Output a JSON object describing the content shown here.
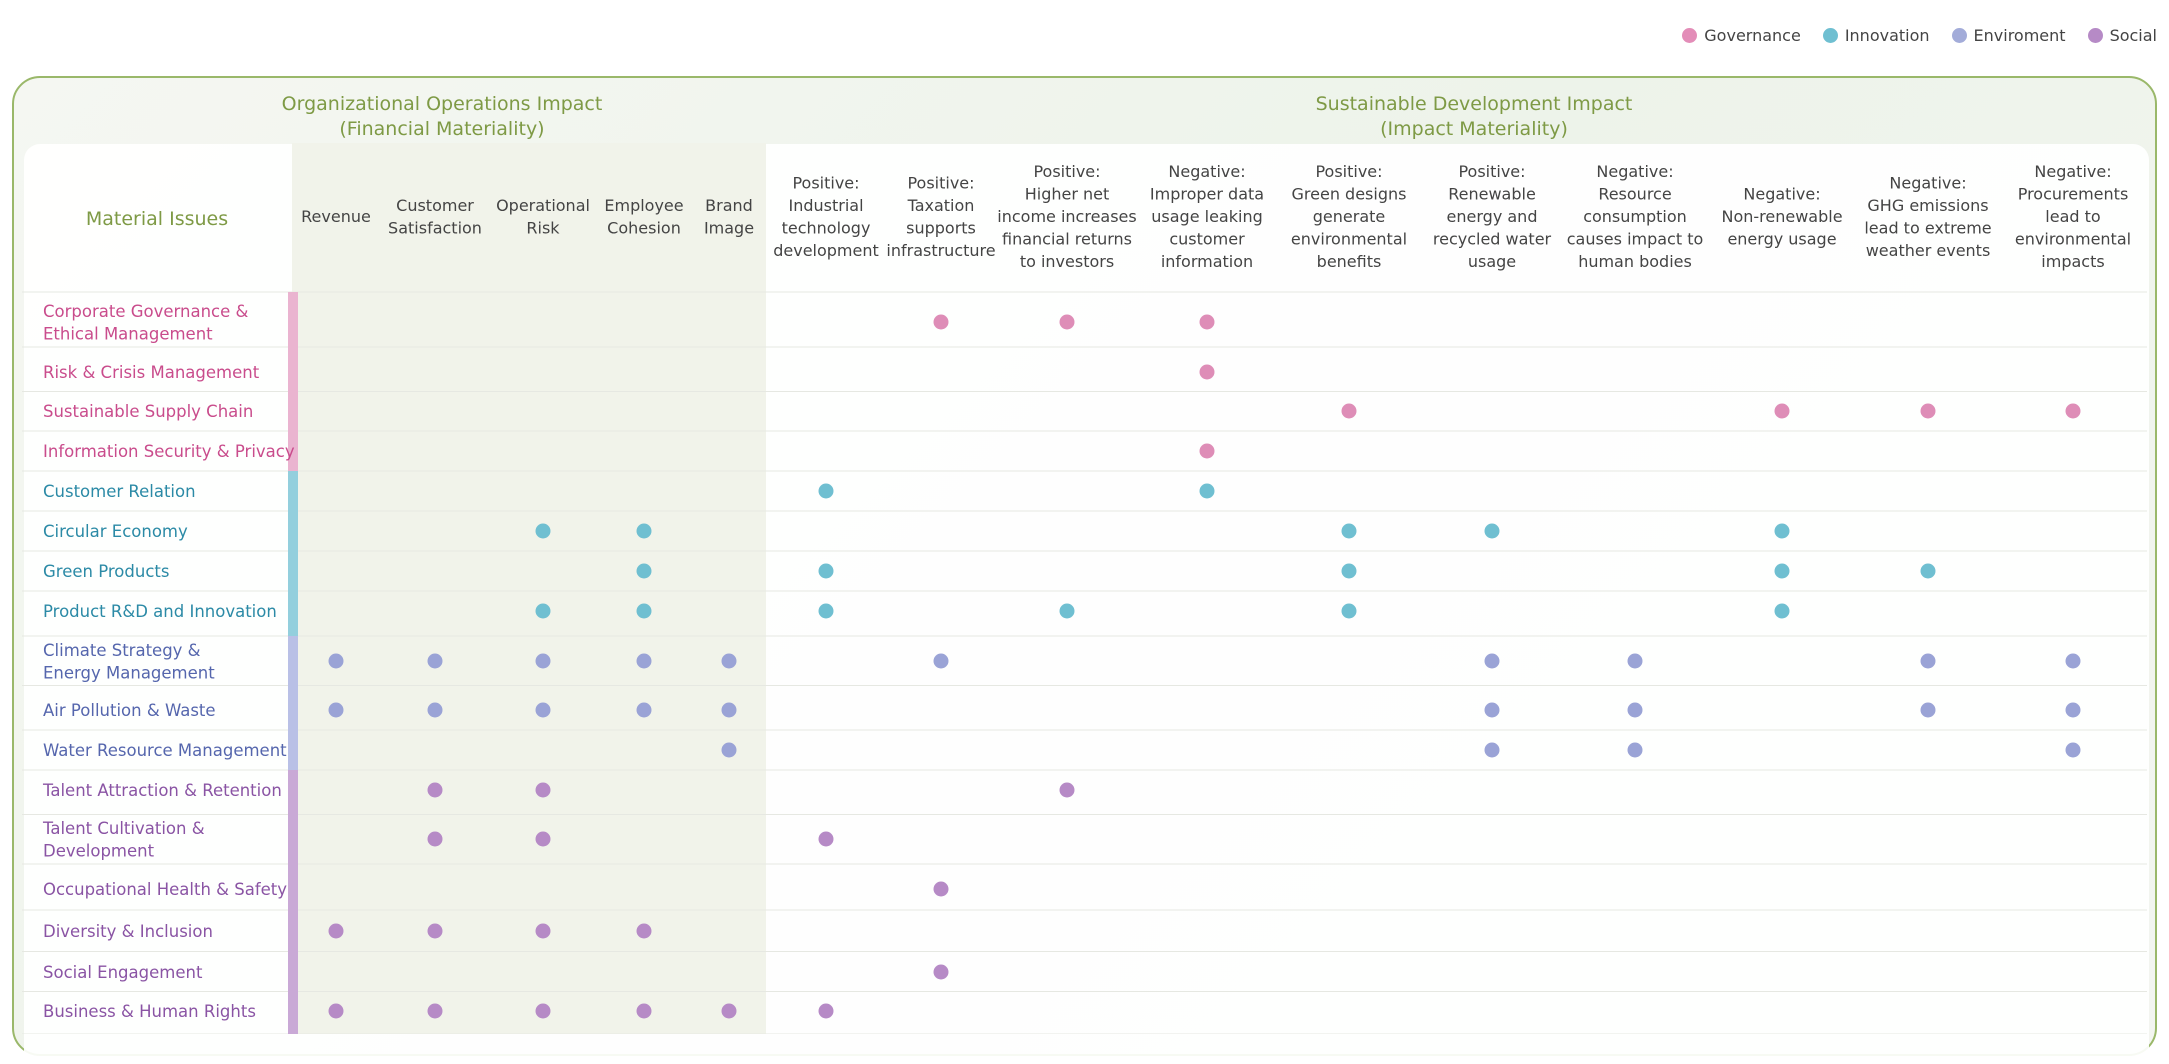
{
  "legend": [
    {
      "name": "Governance",
      "color": "#e38db8"
    },
    {
      "name": "Innovation",
      "color": "#6fbfd1"
    },
    {
      "name": "Enviroment",
      "color": "#a3acd9"
    },
    {
      "name": "Social",
      "color": "#b68ac6"
    }
  ],
  "groups": {
    "financial": {
      "line1": "Organizational Operations Impact",
      "line2": "(Financial Materiality)"
    },
    "impact": {
      "line1": "Sustainable Development Impact",
      "line2": "(Impact Materiality)"
    }
  },
  "chart_data": {
    "type": "table",
    "row_header": "Material Issues",
    "columns": [
      {
        "group": "financial",
        "label": [
          "Revenue"
        ]
      },
      {
        "group": "financial",
        "label": [
          "Customer",
          "Satisfaction"
        ]
      },
      {
        "group": "financial",
        "label": [
          "Operational",
          "Risk"
        ]
      },
      {
        "group": "financial",
        "label": [
          "Employee",
          "Cohesion"
        ]
      },
      {
        "group": "financial",
        "label": [
          "Brand",
          "Image"
        ]
      },
      {
        "group": "impact",
        "label": [
          "Positive:",
          "Industrial",
          "technology",
          "development"
        ]
      },
      {
        "group": "impact",
        "label": [
          "Positive:",
          "Taxation",
          "supports",
          "infrastructure"
        ]
      },
      {
        "group": "impact",
        "label": [
          "Positive:",
          "Higher net",
          "income increases",
          "financial returns",
          "to investors"
        ]
      },
      {
        "group": "impact",
        "label": [
          "Negative:",
          "Improper data",
          "usage leaking",
          "customer",
          "information"
        ]
      },
      {
        "group": "impact",
        "label": [
          "Positive:",
          "Green designs",
          "generate",
          "environmental",
          "benefits"
        ]
      },
      {
        "group": "impact",
        "label": [
          "Positive:",
          "Renewable",
          "energy and",
          "recycled water",
          "usage"
        ]
      },
      {
        "group": "impact",
        "label": [
          "Negative:",
          "Resource",
          "consumption",
          "causes impact to",
          "human bodies"
        ]
      },
      {
        "group": "impact",
        "label": [
          "Negative:",
          "Non-renewable",
          "energy usage"
        ]
      },
      {
        "group": "impact",
        "label": [
          "Negative:",
          "GHG emissions",
          "lead to extreme",
          "weather events"
        ]
      },
      {
        "group": "impact",
        "label": [
          "Negative:",
          "Procurements",
          "lead to",
          "environmental",
          "impacts"
        ]
      }
    ],
    "rows": [
      {
        "label": [
          "Corporate Governance &",
          "Ethical Management"
        ],
        "category": "Governance",
        "marks": [
          6,
          7,
          8
        ]
      },
      {
        "label": [
          "Risk & Crisis Management"
        ],
        "category": "Governance",
        "marks": [
          8
        ]
      },
      {
        "label": [
          "Sustainable Supply Chain"
        ],
        "category": "Governance",
        "marks": [
          9,
          12,
          13,
          14
        ]
      },
      {
        "label": [
          "Information Security & Privacy"
        ],
        "category": "Governance",
        "marks": [
          8
        ]
      },
      {
        "label": [
          "Customer Relation"
        ],
        "category": "Innovation",
        "marks": [
          5,
          8
        ]
      },
      {
        "label": [
          "Circular Economy"
        ],
        "category": "Innovation",
        "marks": [
          2,
          3,
          9,
          10,
          12
        ]
      },
      {
        "label": [
          "Green Products"
        ],
        "category": "Innovation",
        "marks": [
          3,
          5,
          9,
          12,
          13
        ]
      },
      {
        "label": [
          "Product R&D and Innovation"
        ],
        "category": "Innovation",
        "marks": [
          2,
          3,
          5,
          7,
          9,
          12
        ]
      },
      {
        "label": [
          "Climate Strategy &",
          "Energy Management"
        ],
        "category": "Enviroment",
        "marks": [
          0,
          1,
          2,
          3,
          4,
          6,
          10,
          11,
          13,
          14
        ]
      },
      {
        "label": [
          "Air Pollution & Waste"
        ],
        "category": "Enviroment",
        "marks": [
          0,
          1,
          2,
          3,
          4,
          10,
          11,
          13,
          14
        ]
      },
      {
        "label": [
          "Water Resource Management"
        ],
        "category": "Enviroment",
        "marks": [
          4,
          10,
          11,
          14
        ]
      },
      {
        "label": [
          "Talent Attraction & Retention"
        ],
        "category": "Social",
        "marks": [
          1,
          2,
          7
        ]
      },
      {
        "label": [
          "Talent Cultivation &",
          "Development"
        ],
        "category": "Social",
        "marks": [
          1,
          2,
          5
        ]
      },
      {
        "label": [
          "Occupational Health & Safety"
        ],
        "category": "Social",
        "marks": [
          6
        ]
      },
      {
        "label": [
          "Diversity & Inclusion"
        ],
        "category": "Social",
        "marks": [
          0,
          1,
          2,
          3
        ]
      },
      {
        "label": [
          "Social Engagement"
        ],
        "category": "Social",
        "marks": [
          6
        ]
      },
      {
        "label": [
          "Business & Human Rights"
        ],
        "category": "Social",
        "marks": [
          0,
          1,
          2,
          3,
          4,
          5
        ]
      }
    ],
    "category_colors": {
      "Governance": {
        "dot": "#de8db7",
        "bar": "#eab4d0",
        "text": "#c94c8c"
      },
      "Innovation": {
        "dot": "#6fbfd1",
        "bar": "#93cfdd",
        "text": "#2b8aa6"
      },
      "Enviroment": {
        "dot": "#9aa3d6",
        "bar": "#b9c0e6",
        "text": "#5566ad"
      },
      "Social": {
        "dot": "#b68ac6",
        "bar": "#c9a9d6",
        "text": "#8a54a4"
      }
    }
  }
}
